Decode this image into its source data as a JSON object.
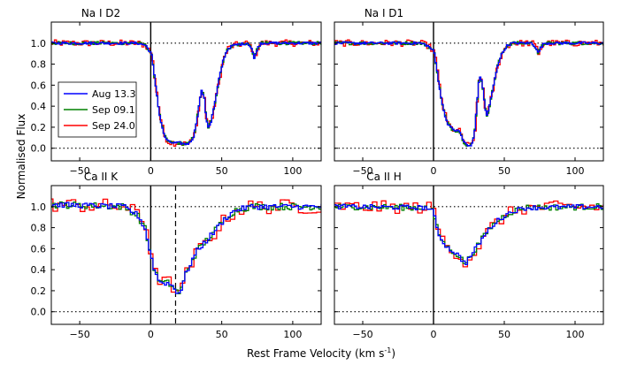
{
  "chart_data": {
    "type": "line",
    "figure": {
      "xlabel": "Rest Frame Velocity (km s",
      "xlabel_sup": "-1",
      "xlabel_end": ")",
      "ylabel": "Normalised Flux"
    },
    "xlim": [
      -70,
      120
    ],
    "ylim": [
      -0.12,
      1.2
    ],
    "x_ticks": [
      -50,
      0,
      50,
      100
    ],
    "x_tick_labels": [
      "−50",
      "0",
      "50",
      "100"
    ],
    "y_ticks": [
      0.0,
      0.2,
      0.4,
      0.6,
      0.8,
      1.0
    ],
    "y_tick_labels": [
      "0.0",
      "0.2",
      "0.4",
      "0.6",
      "0.8",
      "1.0"
    ],
    "series": [
      {
        "name": "Aug 13.3",
        "color": "#0000ff"
      },
      {
        "name": "Sep 09.1",
        "color": "#008000"
      },
      {
        "name": "Sep 24.0",
        "color": "#ff0000"
      }
    ],
    "panels": [
      {
        "title": "Na I D2",
        "legend": true,
        "dashed_line": null,
        "profile": [
          [
            -70,
            1.0
          ],
          [
            -10,
            1.0
          ],
          [
            -4,
            0.98
          ],
          [
            0,
            0.9
          ],
          [
            3,
            0.6
          ],
          [
            6,
            0.3
          ],
          [
            9,
            0.12
          ],
          [
            12,
            0.06
          ],
          [
            16,
            0.05
          ],
          [
            20,
            0.05
          ],
          [
            24,
            0.04
          ],
          [
            27,
            0.05
          ],
          [
            30,
            0.12
          ],
          [
            33,
            0.35
          ],
          [
            35,
            0.55
          ],
          [
            37,
            0.5
          ],
          [
            38.5,
            0.3
          ],
          [
            40,
            0.2
          ],
          [
            42,
            0.25
          ],
          [
            45,
            0.45
          ],
          [
            48,
            0.68
          ],
          [
            51,
            0.86
          ],
          [
            54,
            0.95
          ],
          [
            58,
            0.98
          ],
          [
            68,
            1.0
          ],
          [
            71,
            0.94
          ],
          [
            72.5,
            0.84
          ],
          [
            74,
            0.93
          ],
          [
            77,
            1.0
          ],
          [
            120,
            1.0
          ]
        ],
        "noise": 0.012,
        "red_noise": 0.03
      },
      {
        "title": "Na I D1",
        "legend": false,
        "dashed_line": null,
        "profile": [
          [
            -70,
            1.0
          ],
          [
            -10,
            1.0
          ],
          [
            -5,
            0.98
          ],
          [
            0,
            0.92
          ],
          [
            3,
            0.65
          ],
          [
            6,
            0.4
          ],
          [
            9,
            0.25
          ],
          [
            12,
            0.19
          ],
          [
            15,
            0.17
          ],
          [
            18,
            0.16
          ],
          [
            21,
            0.06
          ],
          [
            24,
            0.02
          ],
          [
            27,
            0.04
          ],
          [
            29,
            0.2
          ],
          [
            31,
            0.55
          ],
          [
            32,
            0.7
          ],
          [
            34,
            0.62
          ],
          [
            36,
            0.38
          ],
          [
            37.5,
            0.3
          ],
          [
            39,
            0.4
          ],
          [
            42,
            0.6
          ],
          [
            45,
            0.8
          ],
          [
            48,
            0.9
          ],
          [
            51,
            0.97
          ],
          [
            55,
            1.0
          ],
          [
            69,
            1.0
          ],
          [
            72,
            0.96
          ],
          [
            73.5,
            0.9
          ],
          [
            75,
            0.95
          ],
          [
            78,
            1.0
          ],
          [
            120,
            1.0
          ]
        ],
        "noise": 0.012,
        "red_noise": 0.03
      },
      {
        "title": "Ca II K",
        "legend": false,
        "dashed_line": 17.5,
        "profile": [
          [
            -70,
            1.02
          ],
          [
            -20,
            1.0
          ],
          [
            -10,
            0.92
          ],
          [
            -5,
            0.8
          ],
          [
            0,
            0.5
          ],
          [
            3,
            0.35
          ],
          [
            6,
            0.28
          ],
          [
            12,
            0.27
          ],
          [
            15,
            0.24
          ],
          [
            17,
            0.2
          ],
          [
            19,
            0.18
          ],
          [
            21,
            0.22
          ],
          [
            24,
            0.36
          ],
          [
            28,
            0.48
          ],
          [
            32,
            0.58
          ],
          [
            36,
            0.64
          ],
          [
            40,
            0.7
          ],
          [
            45,
            0.78
          ],
          [
            50,
            0.86
          ],
          [
            55,
            0.93
          ],
          [
            60,
            0.97
          ],
          [
            70,
            1.0
          ],
          [
            120,
            1.0
          ]
        ],
        "noise": 0.025,
        "red_noise": 0.07
      },
      {
        "title": "Ca II H",
        "legend": false,
        "dashed_line": null,
        "profile": [
          [
            -70,
            1.0
          ],
          [
            -5,
            0.99
          ],
          [
            -1,
            0.95
          ],
          [
            2,
            0.78
          ],
          [
            5,
            0.68
          ],
          [
            10,
            0.6
          ],
          [
            15,
            0.56
          ],
          [
            19,
            0.5
          ],
          [
            22,
            0.46
          ],
          [
            25,
            0.52
          ],
          [
            30,
            0.62
          ],
          [
            35,
            0.72
          ],
          [
            40,
            0.81
          ],
          [
            45,
            0.87
          ],
          [
            50,
            0.92
          ],
          [
            56,
            0.96
          ],
          [
            65,
            0.99
          ],
          [
            120,
            1.0
          ]
        ],
        "noise": 0.022,
        "red_noise": 0.06
      }
    ]
  }
}
